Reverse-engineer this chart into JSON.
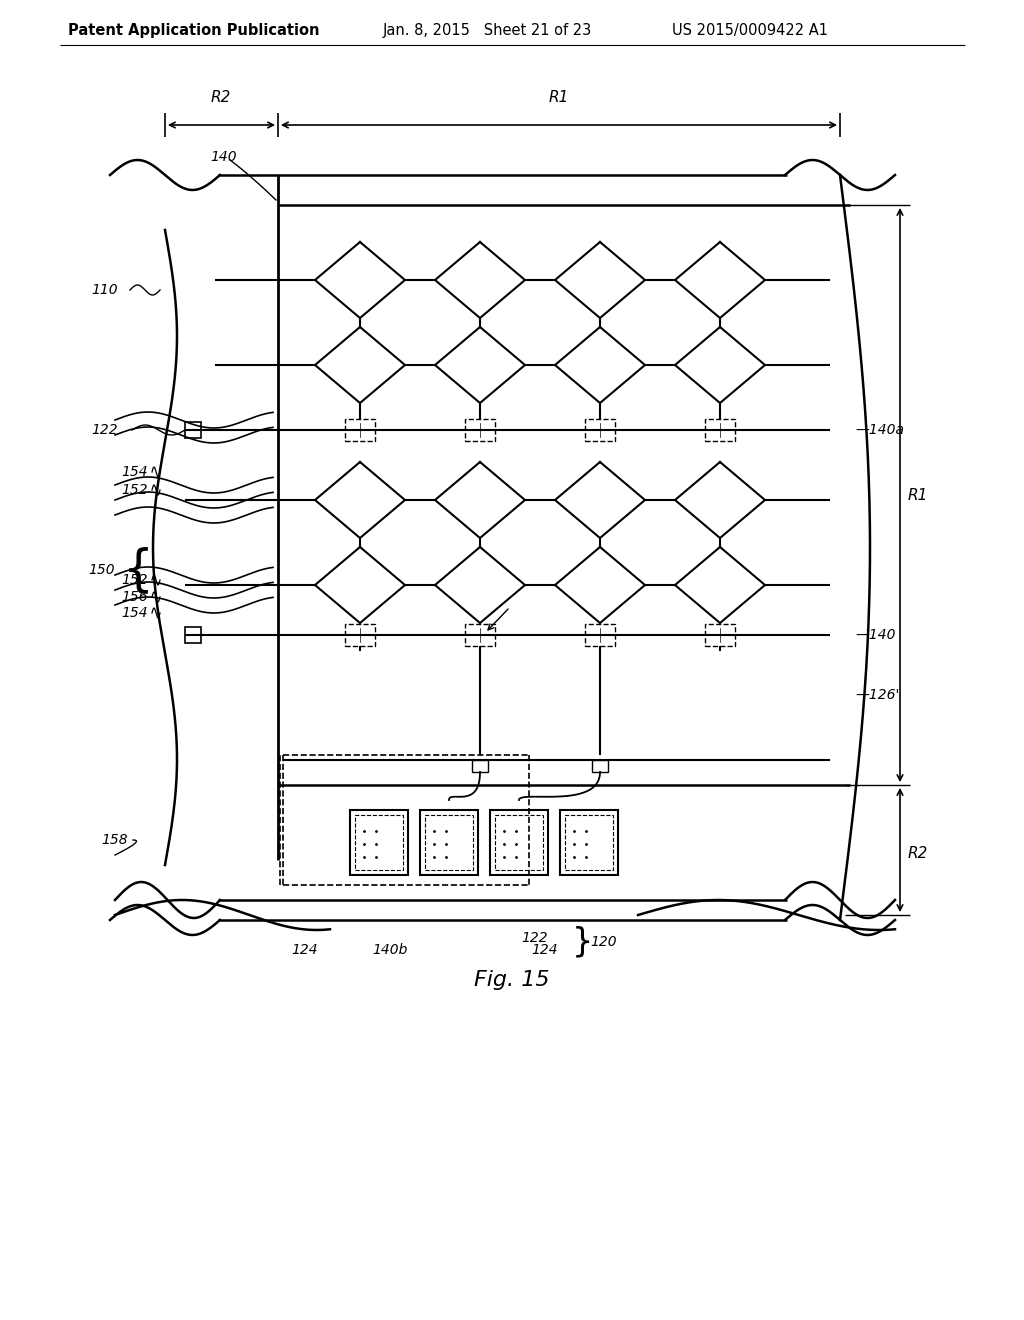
{
  "bg_color": "#ffffff",
  "title_left": "Patent Application Publication",
  "title_mid": "Jan. 8, 2015   Sheet 21 of 23",
  "title_right": "US 2015/0009422 A1",
  "fig_label": "Fig. 15"
}
